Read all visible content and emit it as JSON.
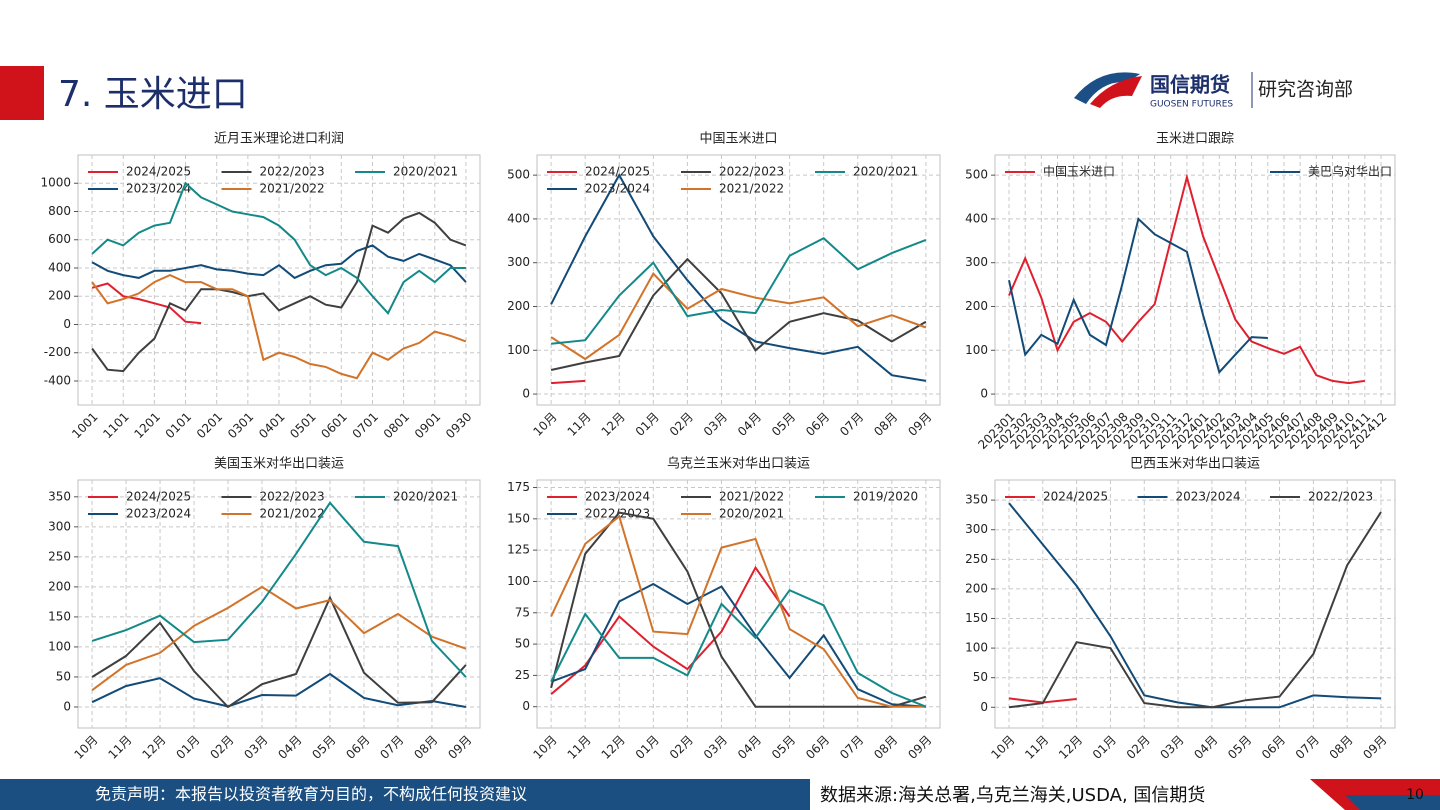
{
  "header": {
    "title": "7. 玉米进口",
    "logo_cn": "国信期货",
    "logo_en": "GUOSEN FUTURES",
    "department": "研究咨询部"
  },
  "footer": {
    "disclaimer": "免责声明：本报告以投资者教育为目的，不构成任何投资建议",
    "source": "数据来源:海关总署,乌克兰海关,USDA, 国信期货",
    "page": 10
  },
  "chart_data": [
    {
      "type": "line",
      "title": "近月玉米理论进口利润",
      "grid": true,
      "categories": [
        "1001",
        null,
        "1101",
        null,
        "1201",
        null,
        "0101",
        null,
        "0201",
        null,
        "0301",
        null,
        "0401",
        null,
        "0501",
        null,
        "0601",
        null,
        "0701",
        null,
        "0801",
        null,
        "0901",
        null,
        "0930"
      ],
      "ylim": [
        -570,
        1200
      ],
      "yticks": [
        -400,
        -200,
        0,
        200,
        400,
        600,
        800,
        1000
      ],
      "series": [
        {
          "name": "2024/2025",
          "color": "#e0202e",
          "values": [
            260,
            290,
            200,
            180,
            150,
            120,
            20,
            10,
            null,
            null,
            null,
            null,
            null,
            null,
            null,
            null,
            null,
            null,
            null,
            null,
            null,
            null,
            null,
            null,
            null
          ]
        },
        {
          "name": "2023/2024",
          "color": "#124b78",
          "values": [
            440,
            380,
            350,
            330,
            380,
            380,
            400,
            420,
            390,
            380,
            360,
            350,
            420,
            330,
            380,
            420,
            430,
            520,
            560,
            480,
            450,
            500,
            460,
            420,
            300
          ]
        },
        {
          "name": "2022/2023",
          "color": "#3f3f3f",
          "values": [
            -170,
            -320,
            -330,
            -200,
            -100,
            150,
            100,
            250,
            250,
            230,
            200,
            220,
            100,
            150,
            200,
            140,
            120,
            300,
            700,
            650,
            750,
            790,
            720,
            600,
            560
          ]
        },
        {
          "name": "2021/2022",
          "color": "#d2732a",
          "values": [
            300,
            150,
            180,
            220,
            300,
            350,
            300,
            300,
            250,
            250,
            200,
            -250,
            -200,
            -230,
            -280,
            -300,
            -350,
            -380,
            -200,
            -250,
            -170,
            -130,
            -50,
            -80,
            -120
          ]
        },
        {
          "name": "2020/2021",
          "color": "#13898a",
          "values": [
            500,
            600,
            560,
            650,
            700,
            720,
            1000,
            900,
            850,
            800,
            780,
            760,
            700,
            600,
            420,
            350,
            400,
            330,
            200,
            80,
            300,
            380,
            300,
            400,
            400
          ]
        }
      ]
    },
    {
      "type": "line",
      "title": "中国玉米进口",
      "grid": true,
      "categories": [
        "10月",
        "11月",
        "12月",
        "01月",
        "02月",
        "03月",
        "04月",
        "05月",
        "06月",
        "07月",
        "08月",
        "09月"
      ],
      "ylim": [
        -25,
        546
      ],
      "yticks": [
        0,
        100,
        200,
        300,
        400,
        500
      ],
      "series": [
        {
          "name": "2024/2025",
          "color": "#e0202e",
          "values": [
            25,
            30,
            null,
            null,
            null,
            null,
            null,
            null,
            null,
            null,
            null,
            null
          ]
        },
        {
          "name": "2023/2024",
          "color": "#124b78",
          "values": [
            205,
            360,
            500,
            360,
            260,
            170,
            120,
            105,
            92,
            108,
            43,
            30
          ]
        },
        {
          "name": "2022/2023",
          "color": "#3f3f3f",
          "values": [
            55,
            72,
            87,
            225,
            308,
            230,
            100,
            165,
            185,
            168,
            120,
            165
          ]
        },
        {
          "name": "2021/2022",
          "color": "#d2732a",
          "values": [
            130,
            80,
            135,
            275,
            195,
            240,
            220,
            207,
            221,
            155,
            180,
            152
          ]
        },
        {
          "name": "2020/2021",
          "color": "#13898a",
          "values": [
            115,
            123,
            225,
            300,
            178,
            192,
            185,
            316,
            356,
            285,
            322,
            352
          ]
        }
      ]
    },
    {
      "type": "line",
      "title": "玉米进口跟踪",
      "grid": true,
      "categories": [
        "202301",
        "202302",
        "202303",
        "202304",
        "202305",
        "202306",
        "202307",
        "202308",
        "202309",
        "202310",
        "202311",
        "202312",
        "202401",
        "202402",
        "202403",
        "202404",
        "202405",
        "202406",
        "202407",
        "202408",
        "202409",
        "202410",
        "202411",
        "202412"
      ],
      "ylim": [
        -25,
        546
      ],
      "yticks": [
        0,
        100,
        200,
        300,
        400,
        500
      ],
      "series": [
        {
          "name": "中国玉米进口",
          "color": "#e0202e",
          "values": [
            225,
            310,
            220,
            100,
            165,
            185,
            165,
            120,
            165,
            205,
            350,
            495,
            360,
            265,
            170,
            120,
            105,
            92,
            108,
            43,
            30,
            25,
            30,
            null
          ]
        },
        {
          "name": "美巴乌对华出口",
          "color": "#124b78",
          "values": [
            260,
            90,
            135,
            115,
            215,
            135,
            112,
            250,
            400,
            365,
            345,
            325,
            180,
            50,
            90,
            130,
            128,
            null,
            null,
            null,
            null,
            null,
            null,
            null
          ]
        }
      ]
    },
    {
      "type": "line",
      "title": "美国玉米对华出口装运",
      "grid": true,
      "categories": [
        "10月",
        "11月",
        "12月",
        "01月",
        "02月",
        "03月",
        "04月",
        "05月",
        "06月",
        "07月",
        "08月",
        "09月"
      ],
      "ylim": [
        -35,
        378
      ],
      "yticks": [
        0,
        50,
        100,
        150,
        200,
        250,
        300,
        350
      ],
      "series": [
        {
          "name": "2024/2025",
          "color": "#e0202e",
          "values": [
            null,
            null,
            null,
            null,
            null,
            null,
            null,
            null,
            null,
            null,
            null,
            null
          ]
        },
        {
          "name": "2023/2024",
          "color": "#124b78",
          "values": [
            8,
            35,
            48,
            14,
            1,
            20,
            19,
            55,
            15,
            3,
            10,
            0
          ]
        },
        {
          "name": "2022/2023",
          "color": "#3f3f3f",
          "values": [
            50,
            85,
            140,
            60,
            0,
            38,
            55,
            182,
            57,
            7,
            8,
            70
          ]
        },
        {
          "name": "2021/2022",
          "color": "#d2732a",
          "values": [
            28,
            70,
            90,
            135,
            165,
            200,
            164,
            178,
            123,
            155,
            117,
            97
          ]
        },
        {
          "name": "2020/2021",
          "color": "#13898a",
          "values": [
            110,
            128,
            152,
            108,
            112,
            175,
            255,
            340,
            275,
            268,
            110,
            50
          ]
        }
      ]
    },
    {
      "type": "line",
      "title": "乌克兰玉米对华出口装运",
      "grid": true,
      "categories": [
        "10月",
        "11月",
        "12月",
        "01月",
        "02月",
        "03月",
        "04月",
        "05月",
        "06月",
        "07月",
        "08月",
        "09月"
      ],
      "ylim": [
        -17,
        181
      ],
      "yticks": [
        0,
        25,
        50,
        75,
        100,
        125,
        150,
        175
      ],
      "series": [
        {
          "name": "2023/2024",
          "color": "#e0202e",
          "values": [
            10,
            33,
            72,
            48,
            30,
            60,
            111,
            72,
            null,
            null,
            null,
            null
          ]
        },
        {
          "name": "2022/2023",
          "color": "#124b78",
          "values": [
            20,
            30,
            84,
            98,
            82,
            96,
            57,
            23,
            57,
            14,
            2,
            0
          ]
        },
        {
          "name": "2021/2022",
          "color": "#3f3f3f",
          "values": [
            15,
            122,
            155,
            150,
            108,
            40,
            0,
            0,
            0,
            0,
            0,
            8
          ]
        },
        {
          "name": "2020/2021",
          "color": "#d2732a",
          "values": [
            72,
            130,
            152,
            60,
            58,
            127,
            134,
            62,
            46,
            7,
            0,
            0
          ]
        },
        {
          "name": "2019/2020",
          "color": "#13898a",
          "values": [
            20,
            74,
            39,
            39,
            25,
            82,
            55,
            93,
            81,
            27,
            11,
            0
          ]
        }
      ]
    },
    {
      "type": "line",
      "title": "巴西玉米对华出口装运",
      "grid": true,
      "categories": [
        "10月",
        "11月",
        "12月",
        "01月",
        "02月",
        "03月",
        "04月",
        "05月",
        "06月",
        "07月",
        "08月",
        "09月"
      ],
      "ylim": [
        -35,
        384
      ],
      "yticks": [
        0,
        50,
        100,
        150,
        200,
        250,
        300,
        350
      ],
      "series": [
        {
          "name": "2024/2025",
          "color": "#e0202e",
          "values": [
            15,
            8,
            14,
            null,
            null,
            null,
            null,
            null,
            null,
            null,
            null,
            null
          ]
        },
        {
          "name": "2023/2024",
          "color": "#124b78",
          "values": [
            345,
            275,
            205,
            120,
            20,
            8,
            0,
            0,
            0,
            20,
            17,
            15
          ]
        },
        {
          "name": "2022/2023",
          "color": "#3f3f3f",
          "values": [
            0,
            7,
            110,
            100,
            7,
            0,
            0,
            12,
            18,
            90,
            240,
            330
          ]
        }
      ]
    }
  ]
}
